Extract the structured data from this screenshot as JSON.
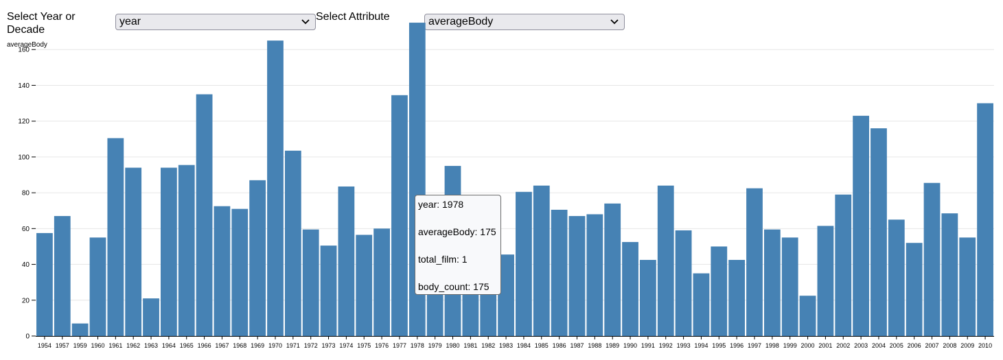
{
  "controls": {
    "group_label": "Select Year or Decade",
    "group_value": "year",
    "attr_label": "Select Attribute",
    "attr_value": "averageBody"
  },
  "chart_data": {
    "type": "bar",
    "ylabel": "averageBody",
    "ylim": [
      0,
      180
    ],
    "yticks": [
      0,
      20,
      40,
      60,
      80,
      100,
      120,
      140,
      160
    ],
    "grid": "horizontal",
    "color": "#4682b4",
    "categories": [
      "1954",
      "1957",
      "1959",
      "1960",
      "1961",
      "1962",
      "1963",
      "1964",
      "1965",
      "1966",
      "1967",
      "1968",
      "1969",
      "1970",
      "1971",
      "1972",
      "1973",
      "1974",
      "1975",
      "1976",
      "1977",
      "1978",
      "1979",
      "1980",
      "1981",
      "1982",
      "1983",
      "1984",
      "1985",
      "1986",
      "1987",
      "1988",
      "1989",
      "1990",
      "1991",
      "1992",
      "1993",
      "1994",
      "1995",
      "1996",
      "1997",
      "1998",
      "1999",
      "2000",
      "2001",
      "2002",
      "2003",
      "2004",
      "2005",
      "2006",
      "2007",
      "2008",
      "2009",
      "2010"
    ],
    "values": [
      57.5,
      67,
      7,
      55,
      110.5,
      94,
      21,
      94,
      95.5,
      135,
      72.5,
      71,
      87,
      165,
      103.5,
      59.5,
      50.5,
      83.5,
      56.5,
      60,
      134.5,
      175,
      24,
      95,
      36,
      28,
      45.5,
      80.5,
      84,
      70.5,
      67,
      68,
      74,
      52.5,
      42.5,
      84,
      59,
      35,
      50,
      42.5,
      82.5,
      59.5,
      55,
      22.5,
      61.5,
      79,
      123,
      116,
      65,
      52,
      85.5,
      68.5,
      55,
      130
    ]
  },
  "tooltip": {
    "year": "year: 1978",
    "averageBody": "averageBody: 175",
    "total_film": "total_film: 1",
    "body_count": "body_count: 175"
  }
}
